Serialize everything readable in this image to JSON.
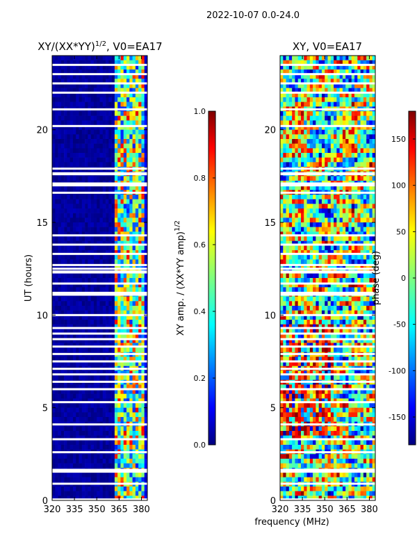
{
  "suptitle": "2022-10-07 0.0-24.0",
  "xlabel": "frequency (MHz)",
  "ylabel": "UT (hours)",
  "colors": {
    "jet": [
      "#00007f",
      "#0000ff",
      "#007fff",
      "#00ffff",
      "#7fff7f",
      "#ffff00",
      "#ff7f00",
      "#ff0000",
      "#7f0000"
    ]
  },
  "chart_data": [
    {
      "type": "heatmap",
      "title_prefix": "XY/(XX*YY)",
      "title_exponent": "1/2",
      "title_suffix": ", V0=EA17",
      "x": {
        "label": "frequency (MHz)",
        "range": [
          320,
          384
        ],
        "ticks": [
          320,
          335,
          350,
          365,
          380
        ]
      },
      "y": {
        "label": "UT (hours)",
        "range": [
          0,
          24
        ],
        "ticks": [
          0,
          5,
          10,
          15,
          20
        ]
      },
      "colorbar": {
        "label_prefix": "XY amp. / (XX*YY amp)",
        "label_exponent": "1/2",
        "range": [
          0.0,
          1.0
        ],
        "ticks": [
          "0.0",
          "0.2",
          "0.4",
          "0.6",
          "0.8",
          "1.0"
        ]
      },
      "description_values": {
        "low_band_value": 0.02,
        "high_band_mean": 0.4,
        "high_band_start_mhz": 362
      }
    },
    {
      "type": "heatmap",
      "title": "XY, V0=EA17",
      "x": {
        "label": "frequency (MHz)",
        "range": [
          320,
          384
        ],
        "ticks": [
          320,
          335,
          350,
          365,
          380
        ]
      },
      "y": {
        "range": [
          0,
          24
        ],
        "ticks": [
          0,
          5,
          10,
          15,
          20
        ]
      },
      "colorbar": {
        "label": "phase (deg)",
        "range": [
          -180,
          180
        ],
        "ticks": [
          "-150",
          "-100",
          "-50",
          "0",
          "50",
          "100",
          "150"
        ]
      }
    }
  ],
  "panel1": {
    "title_prefix": "XY/(XX*YY)",
    "title_exponent": "1/2",
    "title_suffix": ", V0=EA17",
    "xticks": [
      "320",
      "335",
      "350",
      "365",
      "380"
    ],
    "yticks": [
      "0",
      "5",
      "10",
      "15",
      "20"
    ]
  },
  "panel2": {
    "title": "XY, V0=EA17",
    "xticks": [
      "320",
      "335",
      "350",
      "365",
      "380"
    ],
    "yticks": [
      "0",
      "5",
      "10",
      "15",
      "20"
    ]
  },
  "colorbar1": {
    "label_prefix": "XY amp. / (XX*YY amp)",
    "label_exponent": "1/2",
    "ticks": [
      "0.0",
      "0.2",
      "0.4",
      "0.6",
      "0.8",
      "1.0"
    ]
  },
  "colorbar2": {
    "label": "phase (deg)",
    "ticks": [
      "-150",
      "-100",
      "-50",
      "0",
      "50",
      "100",
      "150"
    ]
  }
}
